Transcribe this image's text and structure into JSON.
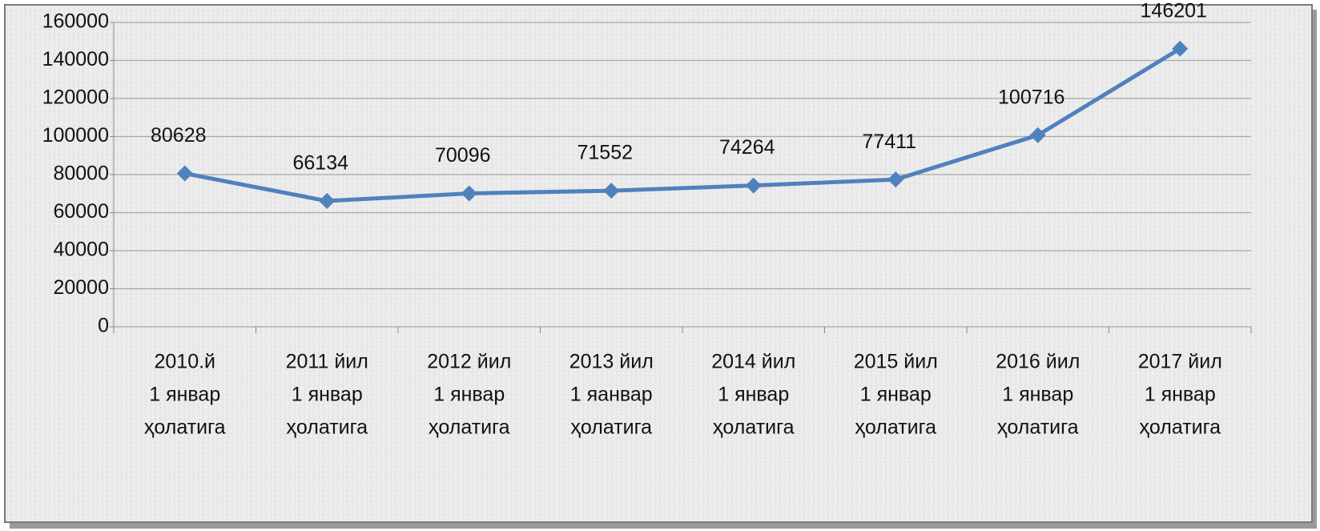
{
  "chart_data": {
    "type": "line",
    "categories": [
      [
        "2010.й",
        "1 январ",
        "ҳолатига"
      ],
      [
        "2011 йил",
        "1 январ",
        "ҳолатига"
      ],
      [
        "2012 йил",
        "1 январ",
        "ҳолатига"
      ],
      [
        "2013 йил",
        "1 яанвар",
        "ҳолатига"
      ],
      [
        "2014 йил",
        "1 январ",
        "ҳолатига"
      ],
      [
        "2015 йил",
        "1 январ",
        "ҳолатига"
      ],
      [
        "2016 йил",
        "1 январ",
        "ҳолатига"
      ],
      [
        "2017 йил",
        "1 январ",
        "ҳолатига"
      ]
    ],
    "values": [
      80628,
      66134,
      70096,
      71552,
      74264,
      77411,
      100716,
      146201
    ],
    "color": "#4f81bd",
    "ylim": [
      0,
      160000
    ],
    "yticks": [
      0,
      20000,
      40000,
      60000,
      80000,
      100000,
      120000,
      140000,
      160000
    ],
    "grid": true
  }
}
